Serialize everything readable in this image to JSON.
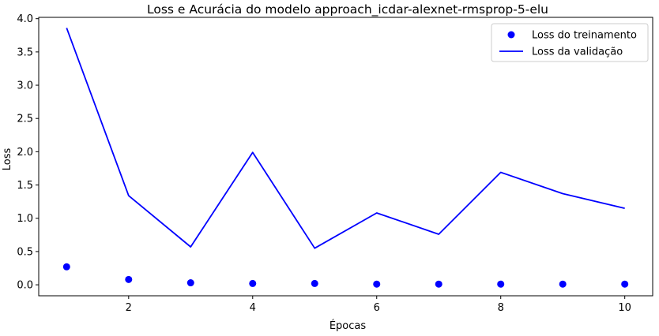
{
  "chart_data": {
    "type": "line",
    "title": "Loss e Acurácia do modelo approach_icdar-alexnet-rmsprop-5-elu",
    "xlabel": "Épocas",
    "ylabel": "Loss",
    "x": [
      1,
      2,
      3,
      4,
      5,
      6,
      7,
      8,
      9,
      10
    ],
    "xlim": [
      0.55,
      10.45
    ],
    "ylim": [
      -0.165,
      4.02
    ],
    "xticks": [
      2,
      4,
      6,
      8,
      10
    ],
    "yticks": [
      0.0,
      0.5,
      1.0,
      1.5,
      2.0,
      2.5,
      3.0,
      3.5,
      4.0
    ],
    "xtick_labels": [
      "2",
      "4",
      "6",
      "8",
      "10"
    ],
    "ytick_labels": [
      "0.0",
      "0.5",
      "1.0",
      "1.5",
      "2.0",
      "2.5",
      "3.0",
      "3.5",
      "4.0"
    ],
    "grid": false,
    "legend_position": "top-right",
    "series": [
      {
        "name": "Loss do treinamento",
        "style": "scatter",
        "color": "#0000ff",
        "values": [
          0.27,
          0.08,
          0.03,
          0.02,
          0.02,
          0.01,
          0.01,
          0.01,
          0.01,
          0.01
        ]
      },
      {
        "name": "Loss da validação",
        "style": "line",
        "color": "#0000ff",
        "values": [
          3.86,
          1.34,
          0.57,
          1.99,
          0.55,
          1.08,
          0.76,
          1.69,
          1.37,
          1.15
        ]
      }
    ]
  }
}
